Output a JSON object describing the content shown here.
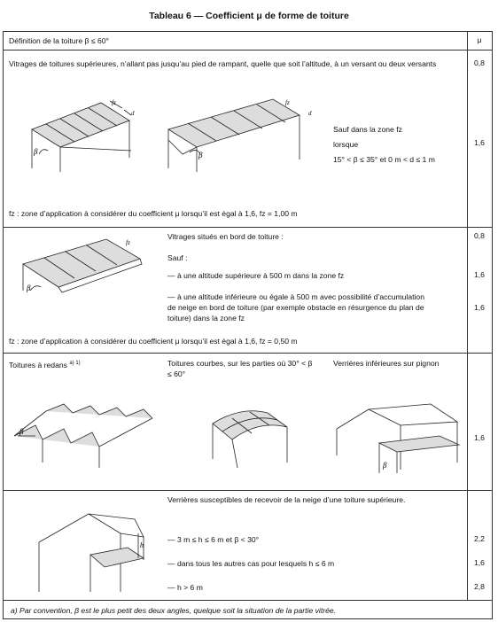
{
  "title": "Tableau 6 — Coefficient μ de forme de toiture",
  "header": {
    "definition": "Définition de la toiture β ≤ 60°",
    "mu": "μ"
  },
  "row1": {
    "text": "Vitrages de toitures supérieures, n’allant pas jusqu’au pied de rampant, quelle que soit l’altitude, à un versant ou deux versants",
    "mu1": "0,8",
    "sauf": "Sauf dans la zone fz",
    "lorsque": "lorsque",
    "cond": "15° < β ≤ 35° et 0 m < d ≤ 1 m",
    "mu2": "1,6",
    "note": "fz : zone d’application à considérer du coefficient μ lorsqu’il est égal à 1,6, fz = 1,00 m"
  },
  "row2": {
    "head": "Vitrages situés en bord de toiture :",
    "mu1": "0,8",
    "sauf": "Sauf :",
    "item1": "— à une altitude supérieure à 500 m dans la zone fz",
    "mu2": "1,6",
    "item2": "— à une altitude inférieure ou égale à 500 m avec possibilité d’accumulation de neige en bord de toiture (par exemple obstacle en résurgence du plan de toiture) dans la zone fz",
    "mu3": "1,6",
    "note": "fz : zone d’application à considérer du coefficient μ lorsqu’il est égal à 1,6, fz = 0,50 m"
  },
  "row3": {
    "col1": "Toitures à redans",
    "col1_sup": "a) 1)",
    "col2": "Toitures courbes, sur les parties où 30° < β ≤ 60°",
    "col3": "Verrières inférieures sur pignon",
    "mu": "1,6"
  },
  "row4": {
    "head": "Verrières susceptibles de recevoir de la neige d’une toiture supérieure.",
    "item1": "— 3 m ≤ h ≤ 6 m et β < 30°",
    "mu1": "2,2",
    "item2": "— dans tous les autres cas pour lesquels h ≤ 6 m",
    "mu2": "1,6",
    "item3": "— h > 6 m",
    "mu3": "2,8"
  },
  "footnote": "a)    Par convention, β est le plus petit des deux angles, quelque soit la situation de la partie vitrée.",
  "figure_labels": {
    "fz": "fz",
    "d": "d",
    "beta": "β",
    "h": "h"
  }
}
